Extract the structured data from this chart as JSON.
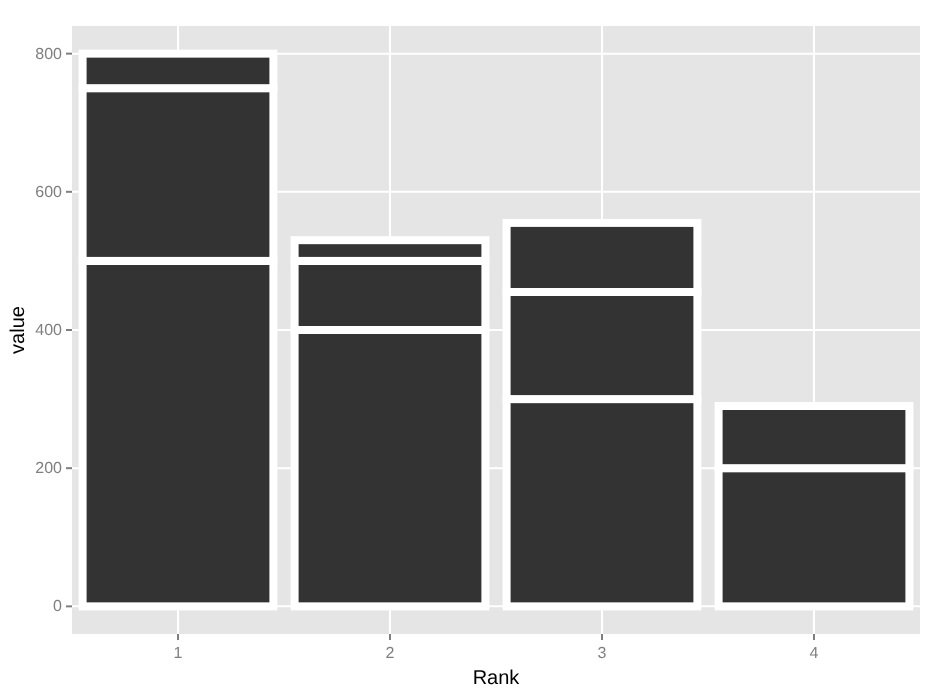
{
  "chart_data": {
    "type": "bar",
    "stacked": true,
    "xlabel": "Rank",
    "ylabel": "value",
    "categories": [
      "1",
      "2",
      "3",
      "4"
    ],
    "series": [
      {
        "color": "#333333",
        "values": [
          500,
          400,
          300,
          200
        ]
      },
      {
        "color": "#333333",
        "values": [
          250,
          100,
          155,
          90
        ]
      },
      {
        "color": "#333333",
        "values": [
          50,
          30,
          100,
          null
        ]
      }
    ],
    "ylim": [
      -40,
      840
    ],
    "yticks": [
      0,
      200,
      400,
      600,
      800
    ],
    "grid": true
  }
}
